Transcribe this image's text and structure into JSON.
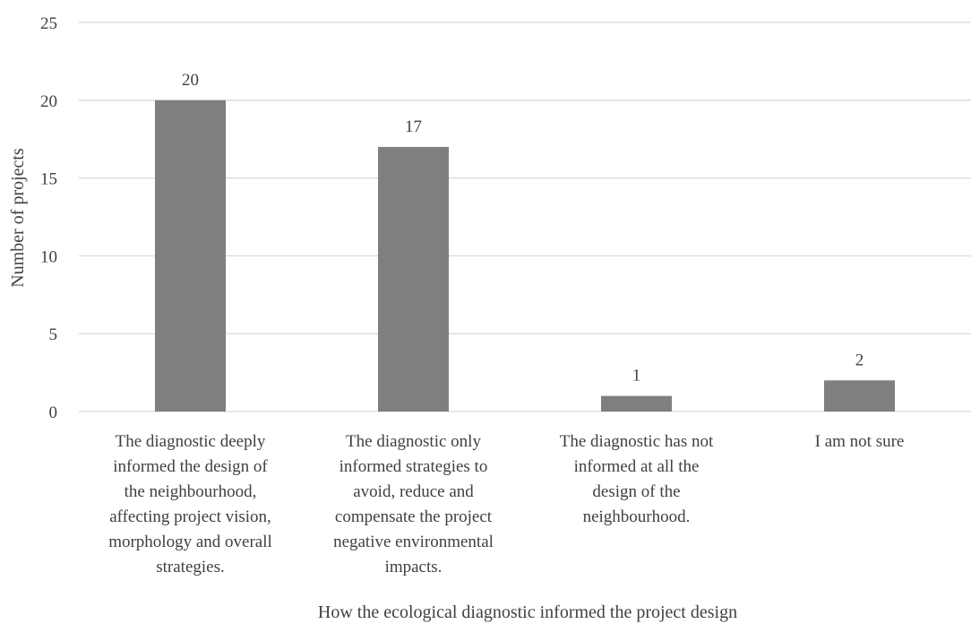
{
  "chart_data": {
    "type": "bar",
    "title": "",
    "xlabel": "How the ecological diagnostic informed the project design",
    "ylabel": "Number of projects",
    "ylim": [
      0,
      25
    ],
    "yticks": [
      0,
      5,
      10,
      15,
      20,
      25
    ],
    "grid": true,
    "legend": "none",
    "categories": [
      "The diagnostic deeply informed the design of the neighbourhood, affecting project vision, morphology and overall strategies.",
      "The diagnostic only informed strategies to avoid, reduce and compensate the project negative environmental impacts.",
      "The diagnostic has not informed at all the design of the neighbourhood.",
      "I am not sure"
    ],
    "category_lines": [
      [
        "The diagnostic deeply",
        "informed the design of",
        "the neighbourhood,",
        "affecting project vision,",
        "morphology and overall",
        "strategies."
      ],
      [
        "The diagnostic only",
        "informed strategies to",
        "avoid, reduce and",
        "compensate the project",
        "negative environmental",
        "impacts."
      ],
      [
        "The diagnostic has not",
        "informed at all the",
        "design of the",
        "neighbourhood."
      ],
      [
        "I am not sure"
      ]
    ],
    "values": [
      20,
      17,
      1,
      2
    ],
    "data_labels": [
      "20",
      "17",
      "1",
      "2"
    ],
    "colors": {
      "bar": "#7f7f7f",
      "grid": "#d9d9d9",
      "text": "#404040"
    }
  }
}
